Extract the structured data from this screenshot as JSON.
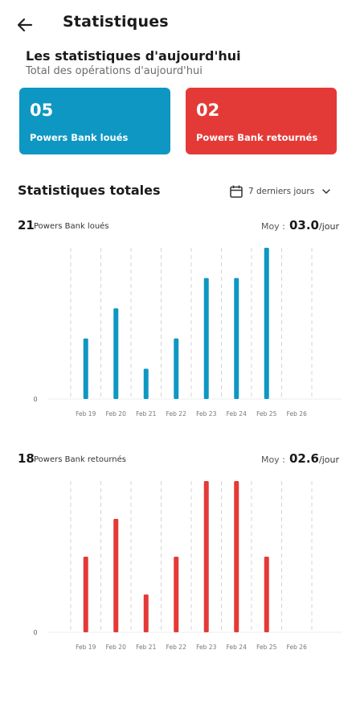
{
  "header": {
    "title": "Statistiques",
    "back_icon": "arrow-left-icon"
  },
  "today": {
    "title": "Les statistiques d'aujourd'hui",
    "subtitle": "Total des opérations d'aujourd'hui",
    "cards": [
      {
        "value": "05",
        "label": "Powers Bank loués",
        "color": "#0e97c2"
      },
      {
        "value": "02",
        "label": "Powers Bank retournés",
        "color": "#e43a37"
      }
    ]
  },
  "totals": {
    "title": "Statistiques totales",
    "period_icon": "calendar-icon",
    "period_label": "7 derniers jours",
    "period_chevron": "chevron-down-icon"
  },
  "chart_data": [
    {
      "type": "bar",
      "count": "21",
      "count_label": "Powers Bank loués",
      "avg_label": "Moy :",
      "avg_value": "03.0",
      "avg_unit": "/jour",
      "ylabel_zero": "0",
      "color": "#0e97c2",
      "categories": [
        "Feb 19",
        "Feb 20",
        "Feb 21",
        "Feb 22",
        "Feb 23",
        "Feb 24",
        "Feb 25",
        "Feb 26"
      ],
      "values": [
        2,
        3,
        1,
        2,
        4,
        4,
        5,
        0
      ],
      "ylim": [
        0,
        5
      ]
    },
    {
      "type": "bar",
      "count": "18",
      "count_label": "Powers Bank retournés",
      "avg_label": "Moy :",
      "avg_value": "02.6",
      "avg_unit": "/jour",
      "ylabel_zero": "0",
      "color": "#e43a37",
      "categories": [
        "Feb 19",
        "Feb 20",
        "Feb 21",
        "Feb 22",
        "Feb 23",
        "Feb 24",
        "Feb 25",
        "Feb 26"
      ],
      "values": [
        2,
        3,
        1,
        2,
        4,
        4,
        2,
        0
      ],
      "ylim": [
        0,
        4
      ]
    }
  ]
}
